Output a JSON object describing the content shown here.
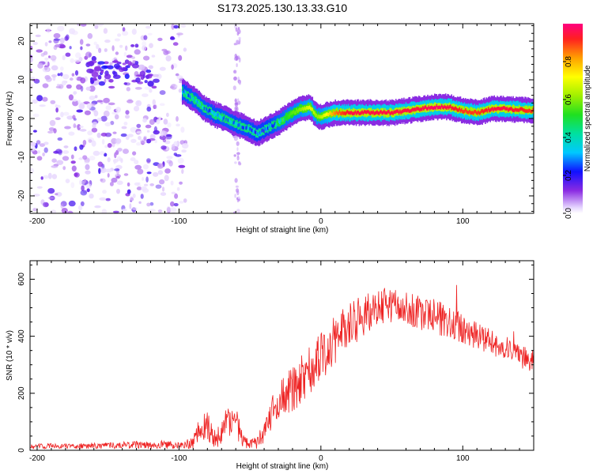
{
  "title": "S173.2025.130.13.33.G10",
  "colors": {
    "snr_line": "#ee2222",
    "spectro_low": "#d8c8f8",
    "spectro_mid": "#6a10e0",
    "spectro_peak": "#ff2a2a"
  },
  "colorbar": {
    "label": "Normalized spectral amplitude",
    "ticks": [
      0.0,
      0.2,
      0.4,
      0.6,
      0.8
    ],
    "tick_labels": [
      "0.0",
      "0.2",
      "0.4",
      "0.6",
      "0.8"
    ],
    "range": [
      0,
      1
    ]
  },
  "chart_data": [
    {
      "type": "heatmap",
      "title": "S173.2025.130.13.33.G10",
      "xlabel": "Height of straight line (km)",
      "ylabel": "Frequency (Hz)",
      "xlim": [
        -205,
        150
      ],
      "ylim": [
        -24.5,
        24.5
      ],
      "x_ticks": [
        -200,
        -100,
        0,
        100
      ],
      "x_tick_labels": [
        "-200",
        "-100",
        "0",
        "100"
      ],
      "y_ticks": [
        -20,
        -10,
        0,
        10,
        20
      ],
      "y_tick_labels": [
        "-20",
        "-10",
        "0",
        "10",
        "20"
      ],
      "ridge": {
        "x": [
          -98,
          -90,
          -82,
          -75,
          -68,
          -60,
          -52,
          -45,
          -38,
          -30,
          -22,
          -15,
          -8,
          -3,
          0,
          10,
          20,
          30,
          40,
          50,
          60,
          70,
          80,
          90,
          100,
          110,
          120,
          130,
          150
        ],
        "y": [
          7,
          5,
          2.5,
          1,
          0,
          -1.5,
          -2.5,
          -4,
          -2.5,
          -1,
          1,
          2.5,
          3,
          0.5,
          0.5,
          1.5,
          1.5,
          1.5,
          1.5,
          1.5,
          2,
          2.5,
          3,
          3,
          2,
          1.5,
          2.5,
          2.5,
          2
        ],
        "peak_amplitude": [
          0.35,
          0.4,
          0.4,
          0.35,
          0.4,
          0.35,
          0.35,
          0.3,
          0.3,
          0.45,
          0.55,
          0.6,
          0.7,
          0.6,
          0.65,
          0.85,
          0.95,
          0.95,
          0.95,
          0.95,
          0.95,
          0.95,
          0.98,
          0.95,
          0.9,
          0.9,
          0.95,
          0.95,
          0.9
        ]
      }
    },
    {
      "type": "line",
      "xlabel": "Height of straight line (km)",
      "ylabel": "SNR (10 * v/v)",
      "xlim": [
        -205,
        150
      ],
      "ylim": [
        0,
        665
      ],
      "x_ticks": [
        -200,
        -100,
        0,
        100
      ],
      "x_tick_labels": [
        "-200",
        "-100",
        "0",
        "100"
      ],
      "y_ticks": [
        0,
        200,
        400,
        600
      ],
      "y_tick_labels": [
        "0",
        "200",
        "400",
        "600"
      ],
      "series": [
        {
          "name": "SNR",
          "envelope_x": [
            -205,
            -170,
            -140,
            -110,
            -100,
            -95,
            -90,
            -85,
            -80,
            -75,
            -70,
            -65,
            -60,
            -55,
            -50,
            -45,
            -40,
            -35,
            -30,
            -25,
            -20,
            -15,
            -10,
            -5,
            0,
            10,
            20,
            30,
            40,
            50,
            60,
            70,
            80,
            90,
            100,
            110,
            120,
            130,
            140,
            150
          ],
          "envelope_y": [
            15,
            15,
            18,
            20,
            20,
            22,
            28,
            80,
            90,
            40,
            55,
            110,
            100,
            35,
            20,
            30,
            60,
            130,
            170,
            200,
            210,
            240,
            280,
            300,
            330,
            390,
            440,
            470,
            500,
            510,
            500,
            480,
            470,
            450,
            430,
            400,
            380,
            360,
            330,
            310
          ],
          "noise": [
            10,
            10,
            12,
            15,
            15,
            15,
            25,
            45,
            55,
            35,
            45,
            60,
            60,
            30,
            15,
            25,
            40,
            55,
            65,
            70,
            80,
            90,
            100,
            95,
            90,
            85,
            80,
            75,
            70,
            60,
            60,
            60,
            60,
            60,
            55,
            50,
            45,
            45,
            40,
            40
          ]
        }
      ]
    }
  ]
}
